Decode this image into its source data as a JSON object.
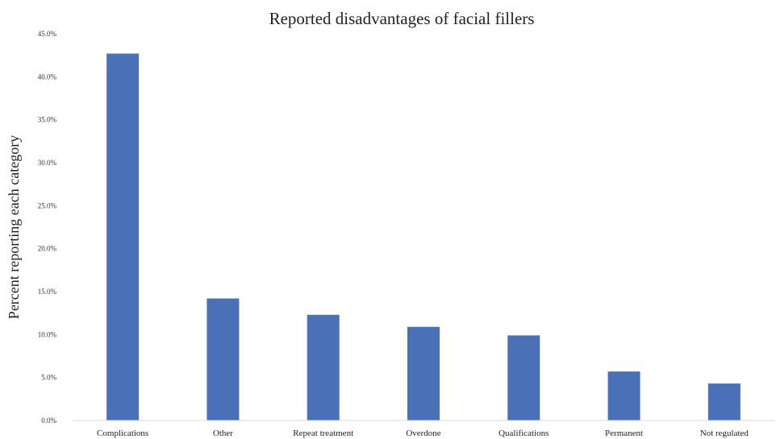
{
  "chart_data": {
    "type": "bar",
    "title": "Reported disadvantages of facial fillers",
    "xlabel": "",
    "ylabel": "Percent reporting each category",
    "categories": [
      "Complications",
      "Other",
      "Repeat treatment",
      "Overdone",
      "Qualifications",
      "Permanent",
      "Not regulated"
    ],
    "values": [
      42.7,
      14.2,
      12.3,
      10.9,
      9.9,
      5.7,
      4.3
    ],
    "ylim": [
      0,
      45
    ],
    "y_ticks": [
      "0.0%",
      "5.0%",
      "10.0%",
      "15.0%",
      "20.0%",
      "25.0%",
      "30.0%",
      "35.0%",
      "40.0%",
      "45.0%"
    ],
    "y_tick_values": [
      0,
      5,
      10,
      15,
      20,
      25,
      30,
      35,
      40,
      45
    ],
    "grid": false,
    "legend": "none",
    "bar_color": "#4a70b8"
  }
}
